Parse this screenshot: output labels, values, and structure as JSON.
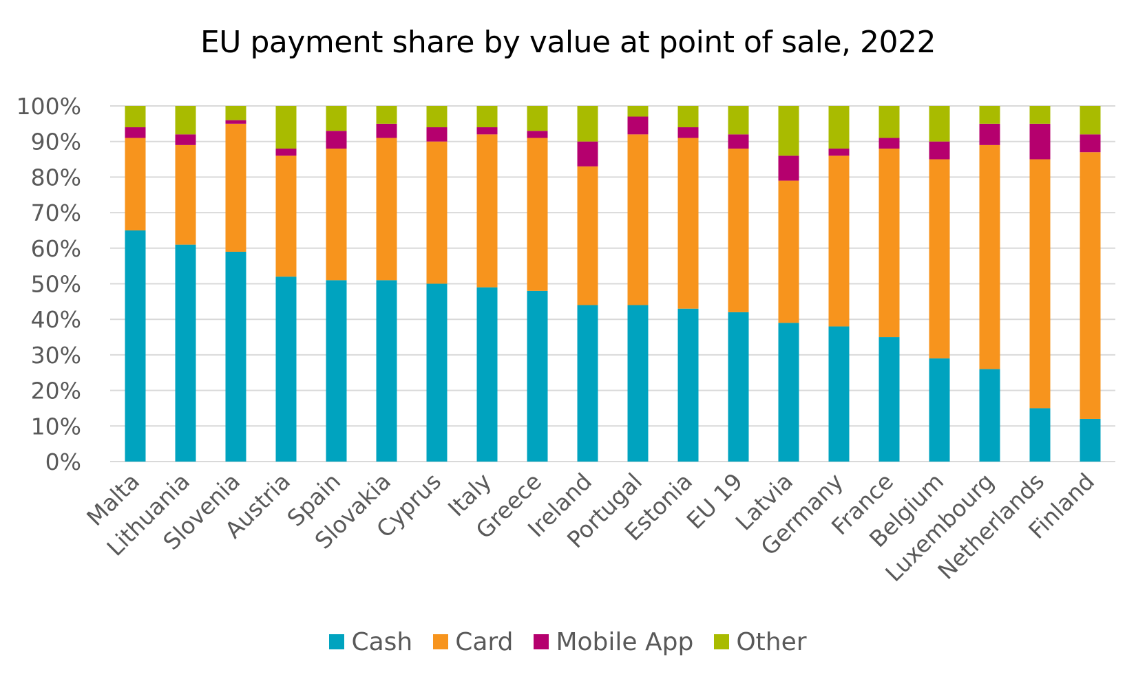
{
  "chart_data": {
    "type": "bar",
    "stacked": true,
    "title": "EU payment share by value at point of sale, 2022",
    "categories": [
      "Malta",
      "Lithuania",
      "Slovenia",
      "Austria",
      "Spain",
      "Slovakia",
      "Cyprus",
      "Italy",
      "Greece",
      "Ireland",
      "Portugal",
      "Estonia",
      "EU 19",
      "Latvia",
      "Germany",
      "France",
      "Belgium",
      "Luxembourg",
      "Netherlands",
      "Finland"
    ],
    "series": [
      {
        "name": "Cash",
        "color": "#00A3BF",
        "values": [
          65,
          61,
          59,
          52,
          51,
          51,
          50,
          49,
          48,
          44,
          44,
          43,
          42,
          39,
          38,
          35,
          29,
          26,
          15,
          12
        ]
      },
      {
        "name": "Card",
        "color": "#F7941D",
        "values": [
          26,
          28,
          36,
          34,
          37,
          40,
          40,
          43,
          43,
          39,
          48,
          48,
          46,
          40,
          48,
          53,
          56,
          63,
          70,
          75
        ]
      },
      {
        "name": "Mobile App",
        "color": "#B5006E",
        "values": [
          3,
          3,
          1,
          2,
          5,
          4,
          4,
          2,
          2,
          7,
          5,
          3,
          4,
          7,
          2,
          3,
          5,
          6,
          10,
          5
        ]
      },
      {
        "name": "Other",
        "color": "#A9BB00",
        "values": [
          6,
          8,
          4,
          12,
          7,
          5,
          6,
          6,
          7,
          10,
          3,
          6,
          8,
          14,
          12,
          9,
          10,
          5,
          5,
          8
        ]
      }
    ],
    "ylim": [
      0,
      100
    ],
    "yticks": [
      "0%",
      "10%",
      "20%",
      "30%",
      "40%",
      "50%",
      "60%",
      "70%",
      "80%",
      "90%",
      "100%"
    ],
    "grid": true,
    "legend_position": "bottom"
  }
}
